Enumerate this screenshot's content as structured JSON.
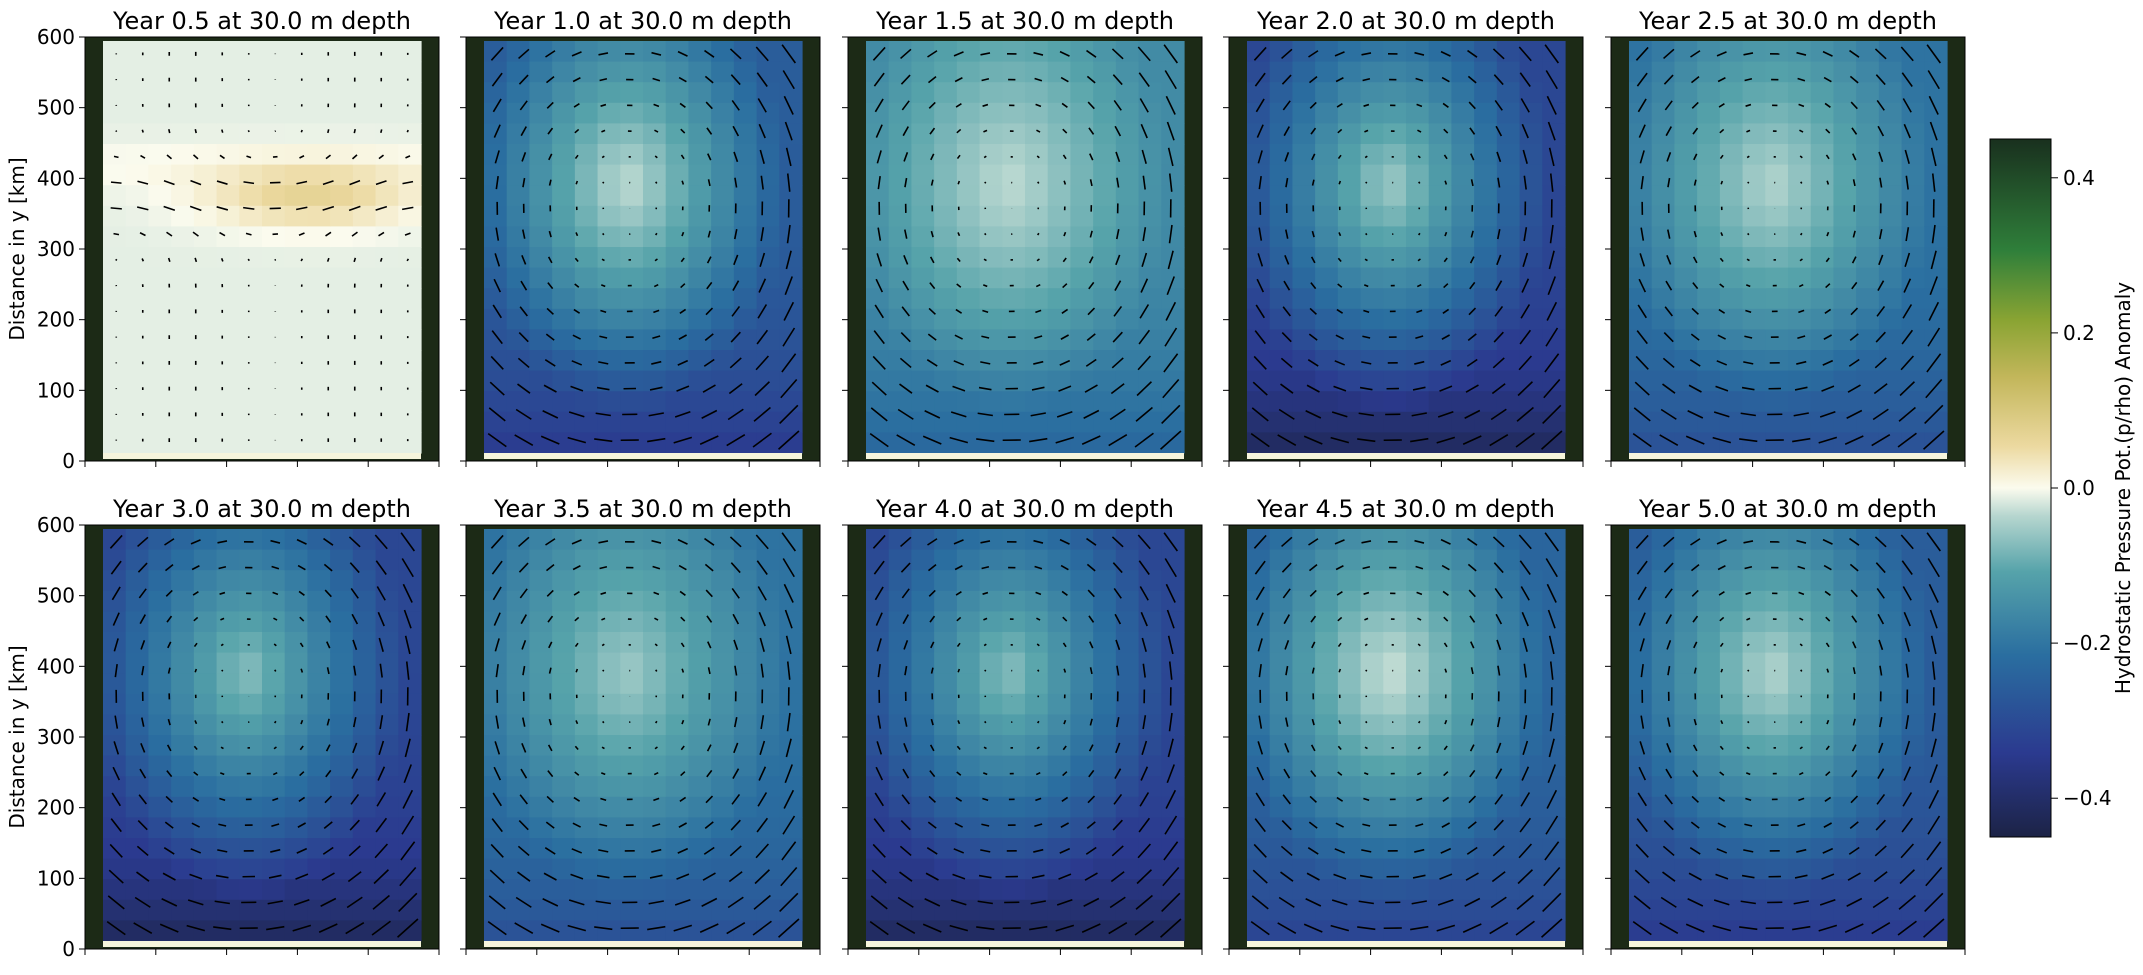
{
  "chart_data": {
    "type": "heatmap",
    "layout": "2 rows x 5 columns of panels sharing y-axis and colorbar",
    "panel_title_template": "Year {year} at 30.0 m depth",
    "ylabel": "Distance in y [km]",
    "ylim": [
      0,
      600
    ],
    "yticks": [
      "0",
      "100",
      "200",
      "300",
      "400",
      "500",
      "600"
    ],
    "x_tick_labels_shown": false,
    "overlay": "velocity quiver arrows (black)",
    "colorbar": {
      "label": "Hydrostatic Pressure Pot.(p/rho) Anomaly",
      "range": [
        -0.45,
        0.45
      ],
      "ticks": [
        "0.4",
        "0.2",
        "0.0",
        "−0.2",
        "−0.4"
      ],
      "colormap": "gist_earth_r-like: dark navy (-) → teal → cream (0) → olive/green → dark green (+)"
    },
    "panels": [
      {
        "title": "Year 0.5 at 30.0 m depth",
        "year": 0.5,
        "approx_center_value": 0.05,
        "approx_edge_value": -0.02,
        "pattern": "warm yellow band near y=400 km"
      },
      {
        "title": "Year 1.0 at 30.0 m depth",
        "year": 1.0,
        "approx_center_value": -0.05,
        "approx_edge_value": -0.3,
        "pattern": "anticyclonic gyre, darker south"
      },
      {
        "title": "Year 1.5 at 30.0 m depth",
        "year": 1.5,
        "approx_center_value": -0.05,
        "approx_edge_value": -0.2,
        "pattern": "anticyclonic gyre"
      },
      {
        "title": "Year 2.0 at 30.0 m depth",
        "year": 2.0,
        "approx_center_value": -0.08,
        "approx_edge_value": -0.35,
        "pattern": "gyre, strong dark edges"
      },
      {
        "title": "Year 2.5 at 30.0 m depth",
        "year": 2.5,
        "approx_center_value": -0.06,
        "approx_edge_value": -0.25,
        "pattern": "gyre"
      },
      {
        "title": "Year 3.0 at 30.0 m depth",
        "year": 3.0,
        "approx_center_value": -0.1,
        "approx_edge_value": -0.35,
        "pattern": "gyre, dark southeast corner"
      },
      {
        "title": "Year 3.5 at 30.0 m depth",
        "year": 3.5,
        "approx_center_value": -0.08,
        "approx_edge_value": -0.25,
        "pattern": "gyre"
      },
      {
        "title": "Year 4.0 at 30.0 m depth",
        "year": 4.0,
        "approx_center_value": -0.1,
        "approx_edge_value": -0.35,
        "pattern": "gyre, dark edges"
      },
      {
        "title": "Year 4.5 at 30.0 m depth",
        "year": 4.5,
        "approx_center_value": -0.04,
        "approx_edge_value": -0.28,
        "pattern": "gyre, dark southeast"
      },
      {
        "title": "Year 5.0 at 30.0 m depth",
        "year": 5.0,
        "approx_center_value": -0.06,
        "approx_edge_value": -0.3,
        "pattern": "gyre, lighter north"
      }
    ]
  }
}
